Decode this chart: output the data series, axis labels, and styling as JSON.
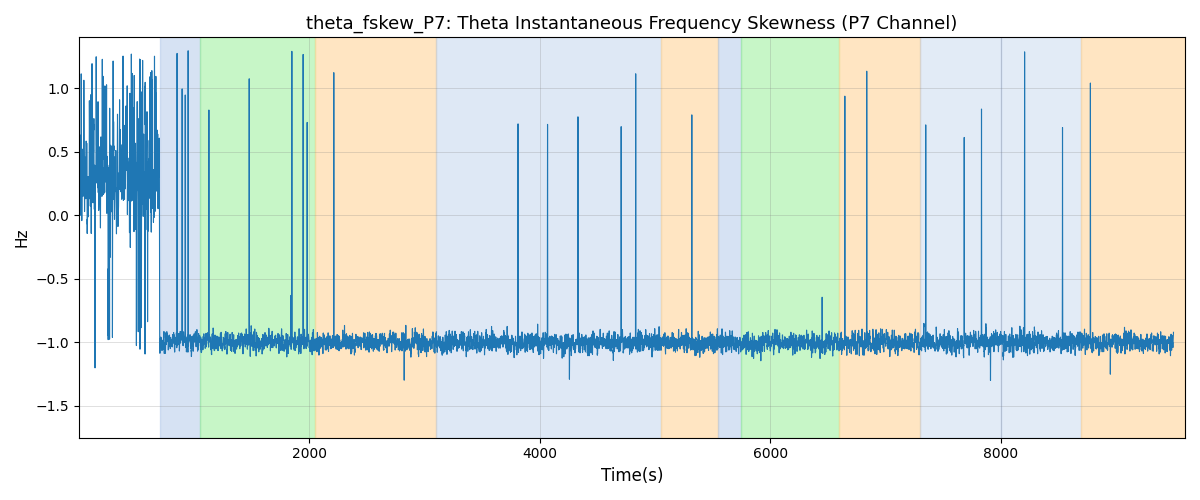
{
  "title": "theta_fskew_P7: Theta Instantaneous Frequency Skewness (P7 Channel)",
  "xlabel": "Time(s)",
  "ylabel": "Hz",
  "xlim": [
    0,
    9600
  ],
  "ylim": [
    -1.75,
    1.4
  ],
  "line_color": "#1f77b4",
  "line_width": 0.8,
  "regions": [
    {
      "xmin": 700,
      "xmax": 1050,
      "color": "#AEC6E8",
      "alpha": 0.5
    },
    {
      "xmin": 1050,
      "xmax": 2050,
      "color": "#90EE90",
      "alpha": 0.5
    },
    {
      "xmin": 2050,
      "xmax": 3100,
      "color": "#FFD59A",
      "alpha": 0.6
    },
    {
      "xmin": 3100,
      "xmax": 5050,
      "color": "#AEC6E8",
      "alpha": 0.4
    },
    {
      "xmin": 5050,
      "xmax": 5550,
      "color": "#FFD59A",
      "alpha": 0.6
    },
    {
      "xmin": 5550,
      "xmax": 5750,
      "color": "#AEC6E8",
      "alpha": 0.5
    },
    {
      "xmin": 5750,
      "xmax": 6600,
      "color": "#90EE90",
      "alpha": 0.5
    },
    {
      "xmin": 6600,
      "xmax": 7300,
      "color": "#FFD59A",
      "alpha": 0.6
    },
    {
      "xmin": 7300,
      "xmax": 8000,
      "color": "#AEC6E8",
      "alpha": 0.35
    },
    {
      "xmin": 8000,
      "xmax": 8700,
      "color": "#AEC6E8",
      "alpha": 0.35
    },
    {
      "xmin": 8700,
      "xmax": 9600,
      "color": "#FFD59A",
      "alpha": 0.6
    }
  ],
  "yticks": [
    -1.5,
    -1.0,
    -0.5,
    0.0,
    0.5,
    1.0
  ],
  "xticks": [
    2000,
    4000,
    6000,
    8000
  ],
  "seed": 42,
  "n_points": 9500,
  "spike_rate": 0.004,
  "early_spike_rate": 0.08,
  "early_end": 700,
  "baseline_mean": -1.0,
  "baseline_std": 0.07,
  "early_mean": 0.3,
  "early_std": 0.35
}
